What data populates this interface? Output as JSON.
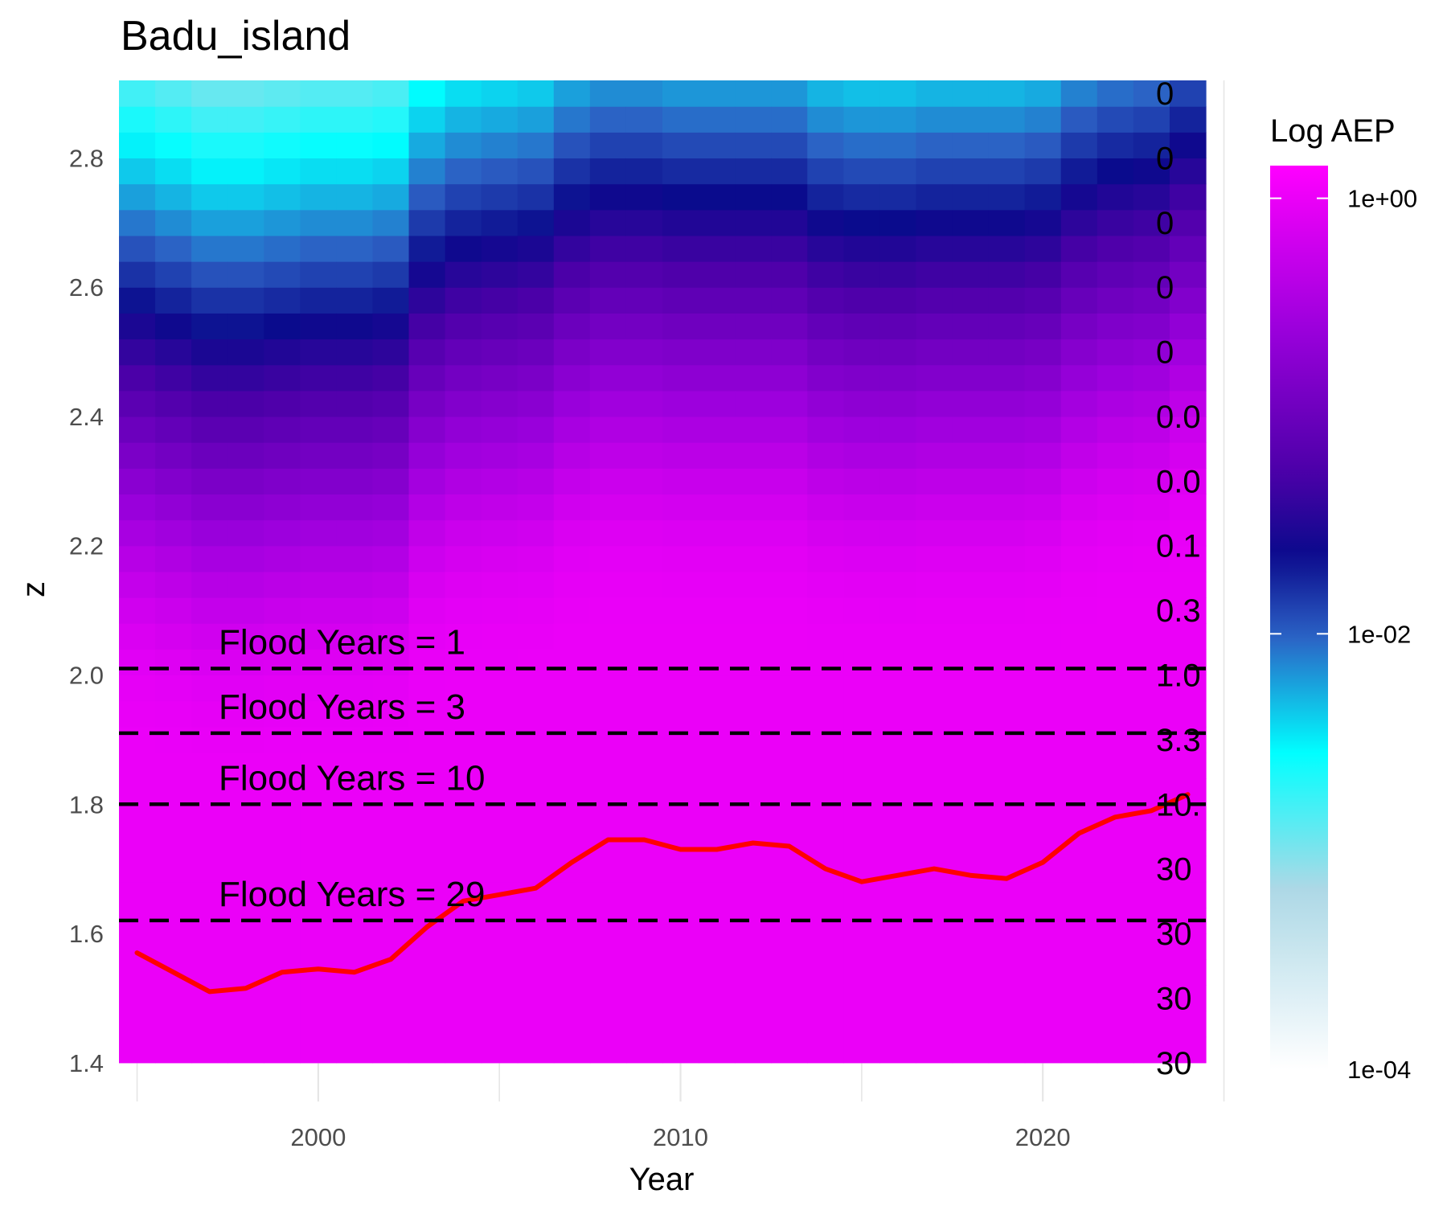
{
  "chart_data": {
    "type": "heatmap",
    "title": "Badu_island",
    "xlabel": "Year",
    "ylabel": "z",
    "xlim": [
      1994.5,
      2024.5
    ],
    "ylim": [
      1.34,
      2.92
    ],
    "x_ticks": [
      2000,
      2010,
      2020
    ],
    "x_tick_labels": [
      "2000",
      "2010",
      "2020"
    ],
    "y_ticks": [
      1.4,
      1.6,
      1.8,
      2.0,
      2.2,
      2.4,
      2.6,
      2.8
    ],
    "y_tick_labels": [
      "1.4",
      "1.6",
      "1.8",
      "2.0",
      "2.2",
      "2.4",
      "2.6",
      "2.8"
    ],
    "grid": true,
    "heatmap": {
      "years": [
        1995,
        1996,
        1997,
        1998,
        1999,
        2000,
        2001,
        2002,
        2003,
        2004,
        2005,
        2006,
        2007,
        2008,
        2009,
        2010,
        2011,
        2012,
        2013,
        2014,
        2015,
        2016,
        2017,
        2018,
        2019,
        2020,
        2021,
        2022,
        2023,
        2024
      ],
      "z_min": 1.4,
      "z_step": 0.04,
      "z_bins": 38,
      "location": [
        2.1,
        2.08,
        2.06,
        2.06,
        2.07,
        2.08,
        2.08,
        2.09,
        2.17,
        2.2,
        2.21,
        2.22,
        2.26,
        2.28,
        2.28,
        2.27,
        2.27,
        2.27,
        2.27,
        2.24,
        2.23,
        2.23,
        2.24,
        2.24,
        2.24,
        2.25,
        2.29,
        2.31,
        2.32,
        2.36
      ],
      "scale": [
        0.125,
        0.125,
        0.125,
        0.125,
        0.125,
        0.125,
        0.125,
        0.125,
        0.125,
        0.125,
        0.125,
        0.125,
        0.125,
        0.125,
        0.125,
        0.125,
        0.125,
        0.125,
        0.125,
        0.125,
        0.125,
        0.125,
        0.125,
        0.125,
        0.125,
        0.125,
        0.125,
        0.125,
        0.125,
        0.125
      ]
    },
    "series": [
      {
        "x": [
          1995,
          1996,
          1997,
          1998,
          1999,
          2000,
          2001,
          2002,
          2003,
          2004,
          2005,
          2006,
          2007,
          2008,
          2009,
          2010,
          2011,
          2012,
          2013,
          2014,
          2015,
          2016,
          2017,
          2018,
          2019,
          2020,
          2021,
          2022,
          2023,
          2024
        ],
        "values": [
          1.57,
          1.54,
          1.51,
          1.515,
          1.54,
          1.545,
          1.54,
          1.56,
          1.61,
          1.65,
          1.66,
          1.67,
          1.71,
          1.745,
          1.745,
          1.73,
          1.73,
          1.74,
          1.735,
          1.7,
          1.68,
          1.69,
          1.7,
          1.69,
          1.685,
          1.71,
          1.755,
          1.78,
          1.79,
          1.815
        ],
        "color": "#ff0000"
      }
    ],
    "flood_lines": [
      {
        "z": 2.01,
        "label": "Flood Years = 1"
      },
      {
        "z": 1.91,
        "label": "Flood Years = 3"
      },
      {
        "z": 1.8,
        "label": "Flood Years = 10"
      },
      {
        "z": 1.62,
        "label": "Flood Years = 29"
      }
    ],
    "secondary_axis": {
      "labels": [
        "0",
        "0",
        "0",
        "0",
        "0",
        "0.0",
        "0.0",
        "0.1",
        "0.3",
        "1.0",
        "3.3",
        "10.",
        "30",
        "30",
        "30",
        "30"
      ],
      "z_values": [
        2.9,
        2.8,
        2.7,
        2.6,
        2.5,
        2.4,
        2.3,
        2.2,
        2.1,
        2.0,
        1.9,
        1.8,
        1.7,
        1.6,
        1.5,
        1.4
      ]
    },
    "legend": {
      "title": "Log AEP",
      "position": "right",
      "labels": [
        "1e+00",
        "1e-02",
        "1e-04"
      ],
      "values": [
        1,
        0.01,
        0.0001
      ],
      "color_stops": [
        {
          "p": 0.0,
          "color": "#ff00ff"
        },
        {
          "p": 0.18,
          "color": "#9b00dc"
        },
        {
          "p": 0.34,
          "color": "#4b00a8"
        },
        {
          "p": 0.43,
          "color": "#0a0a8c"
        },
        {
          "p": 0.52,
          "color": "#2c60c4"
        },
        {
          "p": 0.65,
          "color": "#00ffff"
        },
        {
          "p": 0.8,
          "color": "#add8e6"
        },
        {
          "p": 1.0,
          "color": "#ffffff"
        }
      ]
    }
  }
}
